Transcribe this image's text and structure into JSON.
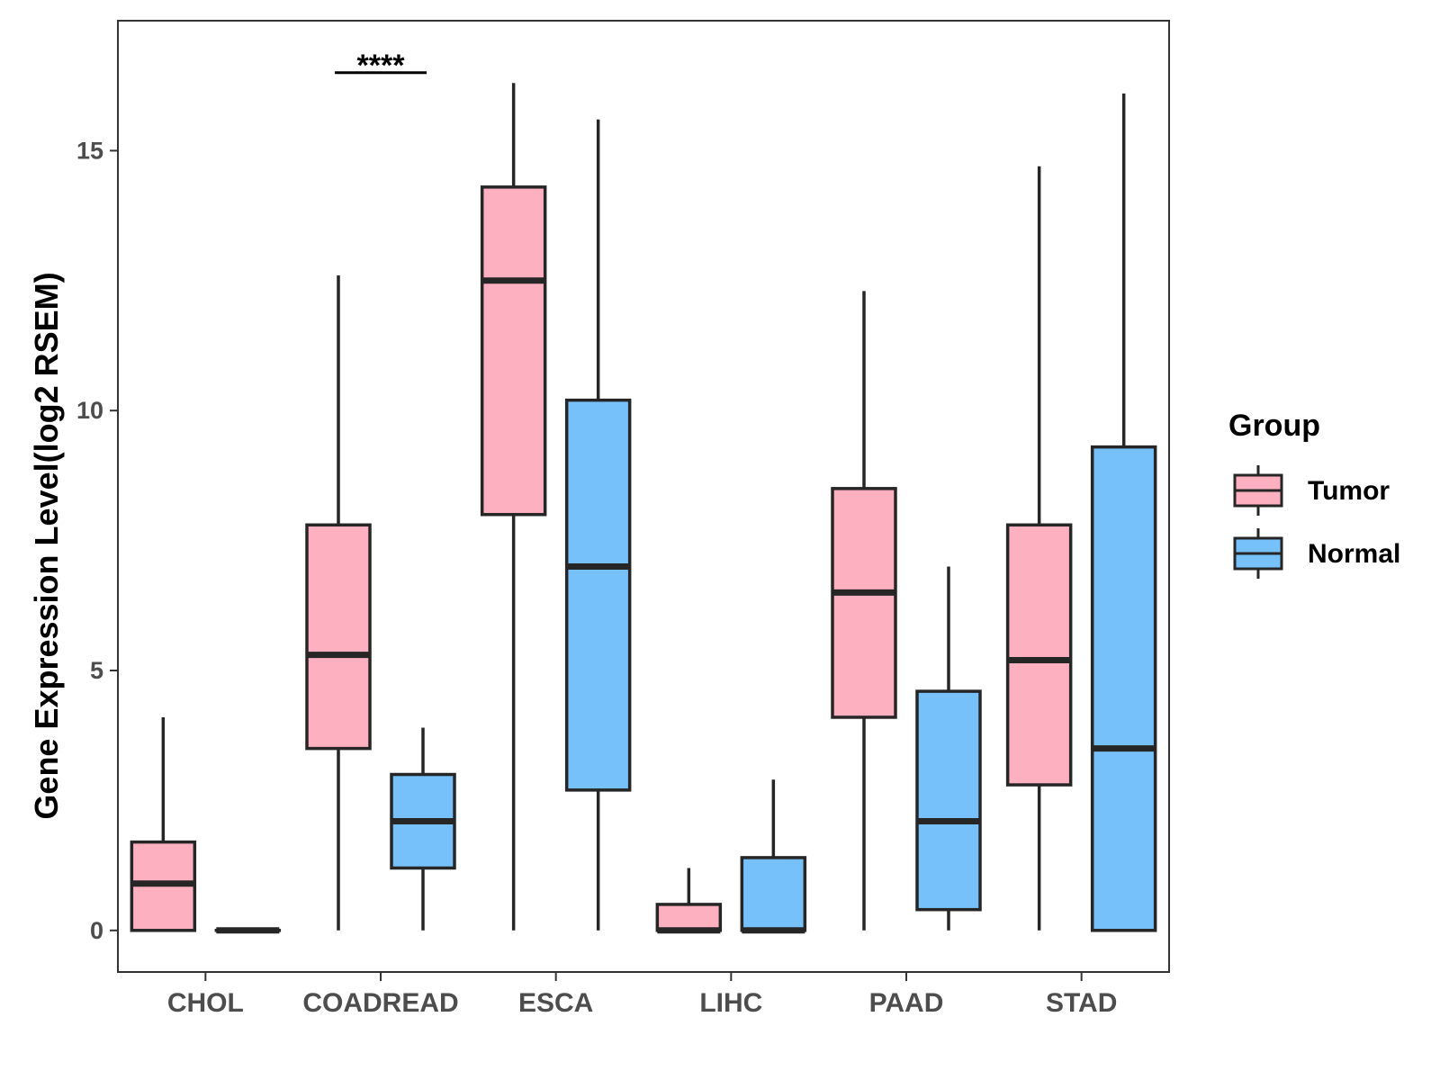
{
  "chart_data": {
    "type": "boxplot",
    "title": "",
    "xlabel": "",
    "ylabel": "Gene Expression Level(log2 RSEM)",
    "ylim": [
      -0.8,
      17.5
    ],
    "yticks": [
      0,
      5,
      10,
      15
    ],
    "grid": false,
    "legend": {
      "title": "Group",
      "position": "right",
      "entries": [
        {
          "name": "Tumor",
          "color": "#FDB0C0"
        },
        {
          "name": "Normal",
          "color": "#76C1F9"
        }
      ]
    },
    "categories": [
      "CHOL",
      "COADREAD",
      "ESCA",
      "LIHC",
      "PAAD",
      "STAD"
    ],
    "series": [
      {
        "name": "Tumor",
        "color": "#FDB0C0",
        "boxes": [
          {
            "min": 0,
            "q1": 0,
            "median": 0.9,
            "q3": 1.7,
            "max": 4.1
          },
          {
            "min": 0,
            "q1": 3.5,
            "median": 5.3,
            "q3": 7.8,
            "max": 12.6
          },
          {
            "min": 0,
            "q1": 8.0,
            "median": 12.5,
            "q3": 14.3,
            "max": 16.3
          },
          {
            "min": 0,
            "q1": 0,
            "median": 0,
            "q3": 0.5,
            "max": 1.2
          },
          {
            "min": 0,
            "q1": 4.1,
            "median": 6.5,
            "q3": 8.5,
            "max": 12.3
          },
          {
            "min": 0,
            "q1": 2.8,
            "median": 5.2,
            "q3": 7.8,
            "max": 14.7
          }
        ]
      },
      {
        "name": "Normal",
        "color": "#76C1F9",
        "boxes": [
          {
            "min": 0,
            "q1": 0,
            "median": 0,
            "q3": 0,
            "max": 0
          },
          {
            "min": 0,
            "q1": 1.2,
            "median": 2.1,
            "q3": 3.0,
            "max": 3.9
          },
          {
            "min": 0,
            "q1": 2.7,
            "median": 7.0,
            "q3": 10.2,
            "max": 15.6
          },
          {
            "min": 0,
            "q1": 0,
            "median": 0,
            "q3": 1.4,
            "max": 2.9
          },
          {
            "min": 0,
            "q1": 0.4,
            "median": 2.1,
            "q3": 4.6,
            "max": 7.0
          },
          {
            "min": 0,
            "q1": 0,
            "median": 3.5,
            "q3": 9.3,
            "max": 16.1
          }
        ]
      }
    ],
    "annotations": [
      {
        "text": "****",
        "category": "COADREAD",
        "y": 16.5
      }
    ]
  }
}
